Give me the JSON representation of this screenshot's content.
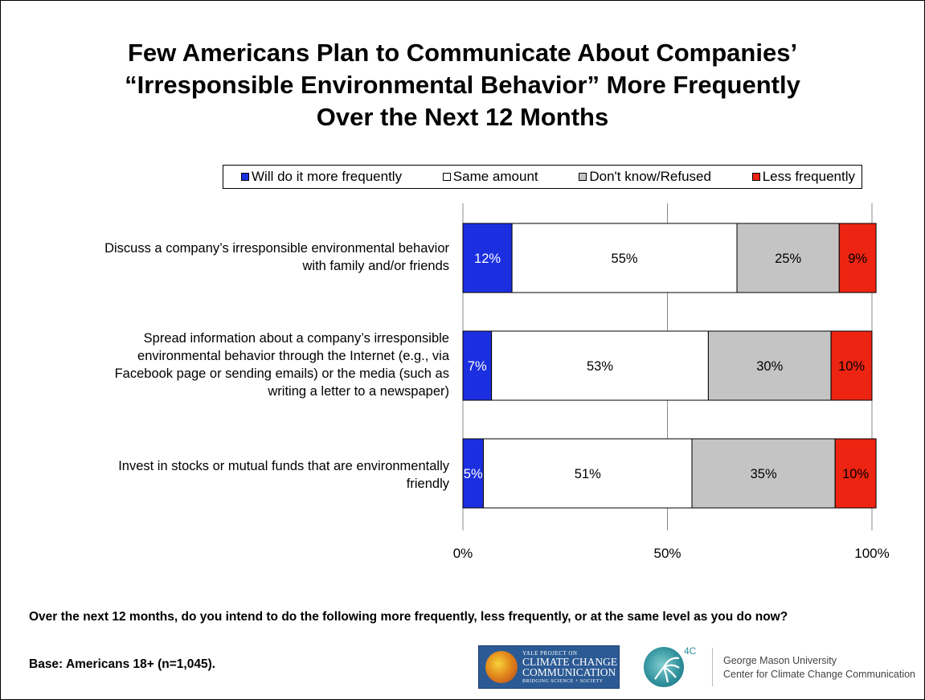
{
  "title_lines": [
    "Few Americans Plan to Communicate About Companies’",
    "“Irresponsible Environmental Behavior” More Frequently",
    "Over the Next 12 Months"
  ],
  "legend": [
    {
      "label": "Will do it more frequently",
      "color": "#1c2fe0"
    },
    {
      "label": "Same amount",
      "color": "#ffffff"
    },
    {
      "label": "Don't know/Refused",
      "color": "#c4c4c4"
    },
    {
      "label": "Less frequently",
      "color": "#ed2412"
    }
  ],
  "chart_data": {
    "type": "bar",
    "orientation": "horizontal",
    "stacked": true,
    "categories": [
      "Discuss a company’s irresponsible environmental behavior with family and/or friends",
      "Spread information about a company’s irresponsible environmental behavior through the Internet (e.g., via Facebook page or sending emails) or the media (such as writing a letter to a newspaper)",
      "Invest in stocks or mutual funds that are environmentally friendly"
    ],
    "category_lines": [
      [
        "Discuss a company’s irresponsible environmental behavior",
        "with family and/or friends"
      ],
      [
        "Spread information about a company’s irresponsible",
        "environmental behavior through the Internet (e.g., via",
        "Facebook page or sending emails) or the media (such as",
        "writing a letter to a newspaper)"
      ],
      [
        "Invest in stocks or mutual funds that are environmentally",
        "friendly"
      ]
    ],
    "series": [
      {
        "name": "Will do it more frequently",
        "values": [
          12,
          7,
          5
        ],
        "labels": [
          "12%",
          "7%",
          "5%"
        ],
        "color": "#1c2fe0",
        "label_color": "#ffffff"
      },
      {
        "name": "Same amount",
        "values": [
          55,
          53,
          51
        ],
        "labels": [
          "55%",
          "53%",
          "51%"
        ],
        "color": "#ffffff",
        "label_color": "#000000"
      },
      {
        "name": "Don't know/Refused",
        "values": [
          25,
          30,
          35
        ],
        "labels": [
          "25%",
          "30%",
          "35%"
        ],
        "color": "#c4c4c4",
        "label_color": "#000000"
      },
      {
        "name": "Less frequently",
        "values": [
          9,
          10,
          10
        ],
        "labels": [
          "9%",
          "10%",
          "10%"
        ],
        "color": "#ed2412",
        "label_color": "#000000"
      }
    ],
    "xlim": [
      0,
      100
    ],
    "x_ticks": [
      "0%",
      "50%",
      "100%"
    ],
    "x_tick_values": [
      0,
      50,
      100
    ],
    "grid": true,
    "legend_position": "top"
  },
  "question": "Over the next 12 months, do you intend to do the following more frequently, less frequently, or at the same level as you do now?",
  "base": "Base: Americans 18+ (n=1,045).",
  "logos": {
    "yale_small": "YALE PROJECT ON",
    "yale_line1": "CLIMATE CHANGE",
    "yale_line2": "COMMUNICATION",
    "yale_tagline": "BRIDGING SCIENCE + SOCIETY",
    "fourc": "4C",
    "gmu_line1": "George Mason University",
    "gmu_line2": "Center for Climate Change Communication"
  }
}
